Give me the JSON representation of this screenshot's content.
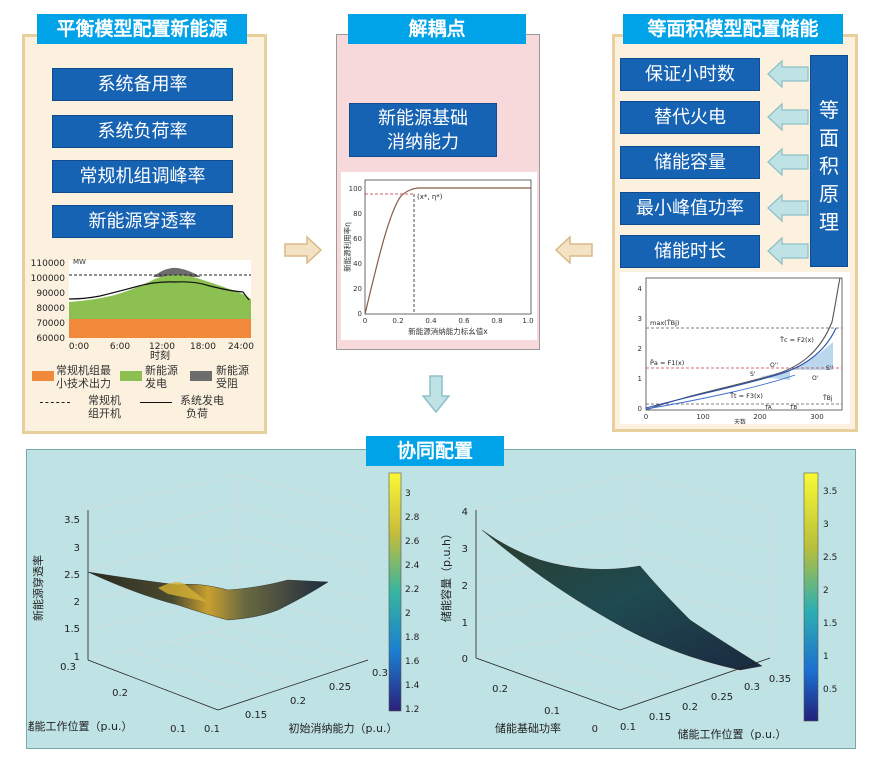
{
  "left": {
    "title": "平衡模型配置新能源",
    "items": [
      "系统备用率",
      "系统负荷率",
      "常规机组调峰率",
      "新能源穿透率"
    ],
    "chart": {
      "unit": "MW",
      "yticks": [
        "110000",
        "100000",
        "90000",
        "80000",
        "70000",
        "60000"
      ],
      "xticks": [
        "0:00",
        "6:00",
        "12:00",
        "18:00",
        "24:00"
      ],
      "xlabel": "时刻"
    },
    "legend": {
      "l1a": "常规机组最",
      "l1b": "小技术出力",
      "l2a": "新能源",
      "l2b": "发电",
      "l3a": "新能源",
      "l3b": "受阻",
      "l4a": "常规机",
      "l4b": "组开机",
      "l5a": "系统发电",
      "l5b": "负荷"
    },
    "colors": {
      "orange": "#f08a3a",
      "green": "#8cc152",
      "gray": "#6d6d6d"
    }
  },
  "middle": {
    "title": "解耦点",
    "box_line1": "新能源基础",
    "box_line2": "消纳能力",
    "chart": {
      "yticks": [
        "100",
        "80",
        "60",
        "40",
        "20",
        "0"
      ],
      "xticks": [
        "0",
        "0.2",
        "0.4",
        "0.6",
        "0.8",
        "1.0"
      ],
      "ylabel": "新能源利用率η",
      "xlabel": "新能源消纳能力标幺值x",
      "point_label": "(x*, η*)"
    }
  },
  "right": {
    "title": "等面积模型配置储能",
    "items": [
      "保证小时数",
      "替代火电",
      "储能容量",
      "最小峰值功率",
      "储能时长"
    ],
    "principle": [
      "等",
      "面",
      "积",
      "原",
      "理"
    ],
    "chart": {
      "yticks": [
        "4",
        "3",
        "2",
        "1",
        "0"
      ],
      "xticks": [
        "0",
        "100",
        "200",
        "300"
      ],
      "xlabel": "天数",
      "labels": {
        "max": "max(T̄Bj)",
        "tc": "T̄c = F2(x)",
        "pa": "P̄a = F1(x)",
        "tt": "T̄t = F3(x)",
        "o1": "O''",
        "o2": "O'",
        "s1": "S'",
        "s2": "S''",
        "ta": "TA",
        "tb": "TB",
        "tbj": "T̄Bj"
      }
    }
  },
  "bottom": {
    "title": "协同配置",
    "left_plot": {
      "zlabel": "新能源穿透率",
      "xlabel": "储能工作位置（p.u.）",
      "ylabel": "初始消纳能力（p.u.）",
      "zticks": [
        "3.5",
        "3",
        "2.5",
        "2",
        "1.5",
        "1"
      ],
      "xticks": [
        "0.3",
        "0.2",
        "0.1"
      ],
      "yticks": [
        "0.1",
        "0.15",
        "0.2",
        "0.25",
        "0.3"
      ],
      "cbar": [
        "3",
        "2.8",
        "2.6",
        "2.4",
        "2.2",
        "2",
        "1.8",
        "1.6",
        "1.4",
        "1.2"
      ]
    },
    "right_plot": {
      "zlabel": "储能容量（p.u.h）",
      "xlabel": "储能基础功率",
      "ylabel": "储能工作位置（p.u.）",
      "zticks": [
        "4",
        "3",
        "2",
        "1",
        "0"
      ],
      "xticks": [
        "0.2",
        "0.1",
        "0"
      ],
      "yticks": [
        "0.1",
        "0.15",
        "0.2",
        "0.25",
        "0.3",
        "0.35"
      ],
      "cbar": [
        "3.5",
        "3",
        "2.5",
        "2",
        "1.5",
        "1",
        "0.5"
      ]
    }
  }
}
